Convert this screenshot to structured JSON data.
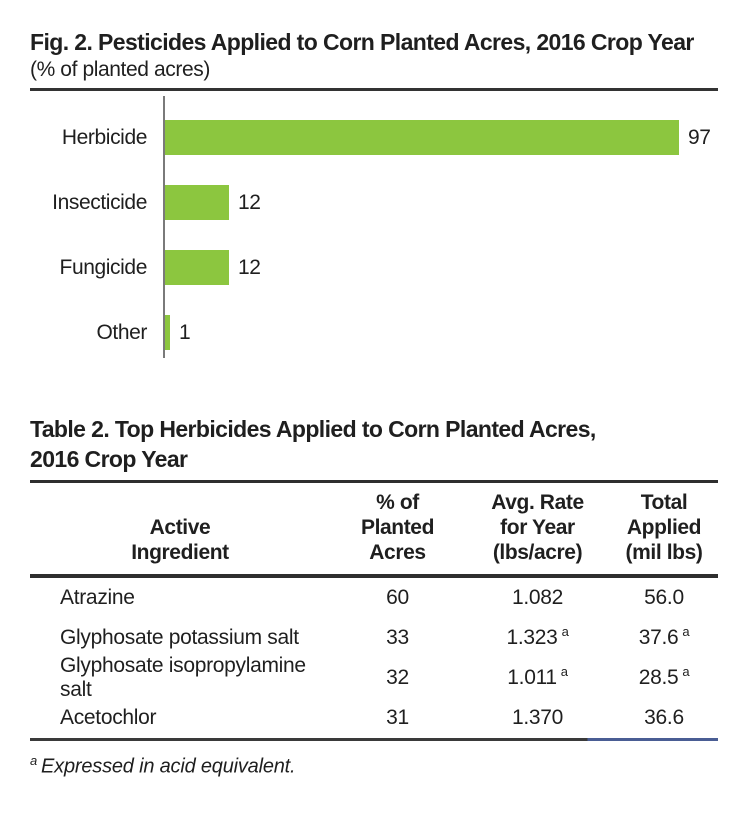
{
  "figure": {
    "title": "Fig. 2. Pesticides Applied to Corn Planted Acres, 2016 Crop Year",
    "subtitle": "(% of planted acres)"
  },
  "chart_data": {
    "type": "bar",
    "orientation": "horizontal",
    "title": "Pesticides Applied to Corn Planted Acres, 2016 Crop Year",
    "xlabel": "% of planted acres",
    "categories": [
      "Herbicide",
      "Insecticide",
      "Fungicide",
      "Other"
    ],
    "values": [
      97,
      12,
      12,
      1
    ],
    "xlim": [
      0,
      100
    ],
    "grid": false,
    "data_labels": true
  },
  "table": {
    "title_line1": "Table 2. Top Herbicides Applied to Corn Planted Acres,",
    "title_line2": "2016 Crop Year",
    "columns": [
      {
        "lines": [
          "Active",
          "Ingredient"
        ]
      },
      {
        "lines": [
          "% of",
          "Planted",
          "Acres"
        ]
      },
      {
        "lines": [
          "Avg. Rate",
          "for Year",
          "(lbs/acre)"
        ]
      },
      {
        "lines": [
          "Total",
          "Applied",
          "(mil lbs)"
        ]
      }
    ],
    "rows": [
      {
        "ingredient": "Atrazine",
        "pct": "60",
        "rate": "1.082",
        "rate_note": "",
        "total": "56.0",
        "total_note": ""
      },
      {
        "ingredient": "Glyphosate potassium salt",
        "pct": "33",
        "rate": "1.323",
        "rate_note": "a",
        "total": "37.6",
        "total_note": "a"
      },
      {
        "ingredient": "Glyphosate isopropylamine salt",
        "pct": "32",
        "rate": "1.011",
        "rate_note": "a",
        "total": "28.5",
        "total_note": "a"
      },
      {
        "ingredient": "Acetochlor",
        "pct": "31",
        "rate": "1.370",
        "rate_note": "",
        "total": "36.6",
        "total_note": ""
      }
    ]
  },
  "footnote": {
    "marker": "a",
    "text": "Expressed in acid equivalent."
  },
  "colors": {
    "bar_green": "#8CC63F",
    "axis_gray": "#7a7a7a",
    "rule_dark": "#3a3a3a",
    "rule_blue": "#4a5d94",
    "text": "#1f1f1f"
  }
}
